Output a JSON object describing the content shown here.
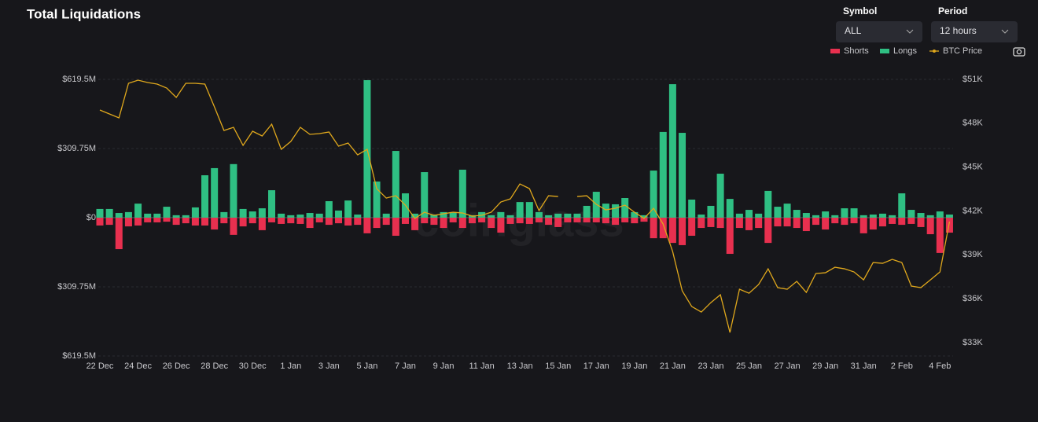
{
  "chart_data": {
    "type": "bar",
    "title": "Total Liquidations",
    "controls": [
      {
        "label": "Symbol",
        "value": "ALL"
      },
      {
        "label": "Period",
        "value": "12 hours"
      }
    ],
    "watermark": "coinglass",
    "categories": [
      "22 Dec",
      null,
      null,
      null,
      "24 Dec",
      null,
      null,
      null,
      "26 Dec",
      null,
      null,
      null,
      "28 Dec",
      null,
      null,
      null,
      "30 Dec",
      null,
      null,
      null,
      "1 Jan",
      null,
      null,
      null,
      "3 Jan",
      null,
      null,
      null,
      "5 Jan",
      null,
      null,
      null,
      "7 Jan",
      null,
      null,
      null,
      "9 Jan",
      null,
      null,
      null,
      "11 Jan",
      null,
      null,
      null,
      "13 Jan",
      null,
      null,
      null,
      "15 Jan",
      null,
      null,
      null,
      "17 Jan",
      null,
      null,
      null,
      "19 Jan",
      null,
      null,
      null,
      "21 Jan",
      null,
      null,
      null,
      "23 Jan",
      null,
      null,
      null,
      "25 Jan",
      null,
      null,
      null,
      "27 Jan",
      null,
      null,
      null,
      "29 Jan",
      null,
      null,
      null,
      "31 Jan",
      null,
      null,
      null,
      "2 Feb",
      null,
      null,
      null,
      "4 Feb",
      null
    ],
    "series": [
      {
        "name": "Shorts",
        "color": "#e8304f",
        "values": [
          -35,
          -32,
          -141,
          -39,
          -35,
          -21,
          -21,
          -18,
          -32,
          -25,
          -35,
          -35,
          -53,
          -25,
          -77,
          -39,
          -25,
          -56,
          -21,
          -28,
          -25,
          -28,
          -46,
          -21,
          -32,
          -25,
          -35,
          -32,
          -70,
          -46,
          -32,
          -81,
          -28,
          -56,
          -25,
          -32,
          -46,
          -21,
          -46,
          -25,
          -21,
          -46,
          -67,
          -28,
          -25,
          -28,
          -21,
          -32,
          -42,
          -21,
          -21,
          -21,
          -21,
          -25,
          -32,
          -21,
          -25,
          -18,
          -92,
          -92,
          -113,
          -123,
          -81,
          -46,
          -42,
          -46,
          -162,
          -46,
          -56,
          -46,
          -113,
          -39,
          -39,
          -46,
          -60,
          -32,
          -53,
          -25,
          -32,
          -25,
          -70,
          -53,
          -39,
          -28,
          -32,
          -28,
          -42,
          -74,
          -158,
          -67
        ]
      },
      {
        "name": "Longs",
        "color": "#2fbf83",
        "values": [
          39,
          39,
          21,
          25,
          63,
          18,
          18,
          49,
          11,
          11,
          46,
          190,
          222,
          25,
          240,
          39,
          28,
          42,
          123,
          18,
          11,
          14,
          21,
          18,
          74,
          32,
          77,
          14,
          616,
          162,
          18,
          299,
          109,
          18,
          204,
          14,
          25,
          25,
          215,
          11,
          25,
          11,
          25,
          11,
          70,
          70,
          25,
          11,
          18,
          18,
          18,
          53,
          116,
          63,
          60,
          88,
          25,
          11,
          211,
          384,
          598,
          380,
          81,
          14,
          53,
          197,
          84,
          18,
          35,
          18,
          120,
          49,
          63,
          35,
          21,
          11,
          28,
          11,
          42,
          42,
          11,
          14,
          18,
          11,
          109,
          35,
          21,
          11,
          28,
          14
        ]
      },
      {
        "name": "BTC Price",
        "type": "line",
        "axis": "y2",
        "color": "#e0a81c",
        "values": [
          48903,
          48634,
          48366,
          50731,
          50946,
          50785,
          50677,
          50409,
          49763,
          50731,
          50731,
          50677,
          49118,
          47505,
          47720,
          46484,
          47452,
          47129,
          47935,
          46215,
          46753,
          47720,
          47237,
          47290,
          47398,
          46430,
          46645,
          45839,
          46215,
          43527,
          42882,
          43043,
          42398,
          41484,
          41914,
          41699,
          41806,
          41914,
          41860,
          41645,
          41699,
          41914,
          42613,
          42828,
          43849,
          43527,
          42022,
          43043,
          42989,
          null,
          42989,
          43043,
          42452,
          42075,
          42183,
          42398,
          41914,
          41484,
          42183,
          41108,
          39226,
          36538,
          35462,
          35086,
          35731,
          36269,
          33688,
          36645,
          36376,
          36968,
          38043,
          36753,
          36645,
          37183,
          36430,
          37720,
          37774,
          38151,
          38043,
          37828,
          37290,
          38473,
          38419,
          38688,
          38473,
          36860,
          36753,
          37290,
          37828,
          41269
        ]
      }
    ],
    "ylim": [
      -619.5,
      619.5
    ],
    "yticks": [
      {
        "value": 619.5,
        "label": "$619.5M"
      },
      {
        "value": 309.75,
        "label": "$309.75M"
      },
      {
        "value": 0,
        "label": "$0"
      },
      {
        "value": -309.75,
        "label": "$309.75M"
      },
      {
        "value": -619.5,
        "label": "$619.5M"
      }
    ],
    "y2lim": [
      32080,
      51000
    ],
    "y2ticks": [
      {
        "value": 51000,
        "label": "$51K"
      },
      {
        "value": 48000,
        "label": "$48K"
      },
      {
        "value": 45000,
        "label": "$45K"
      },
      {
        "value": 42000,
        "label": "$42K"
      },
      {
        "value": 39000,
        "label": "$39K"
      },
      {
        "value": 36000,
        "label": "$36K"
      },
      {
        "value": 33000,
        "label": "$33K"
      }
    ],
    "grid": true
  }
}
